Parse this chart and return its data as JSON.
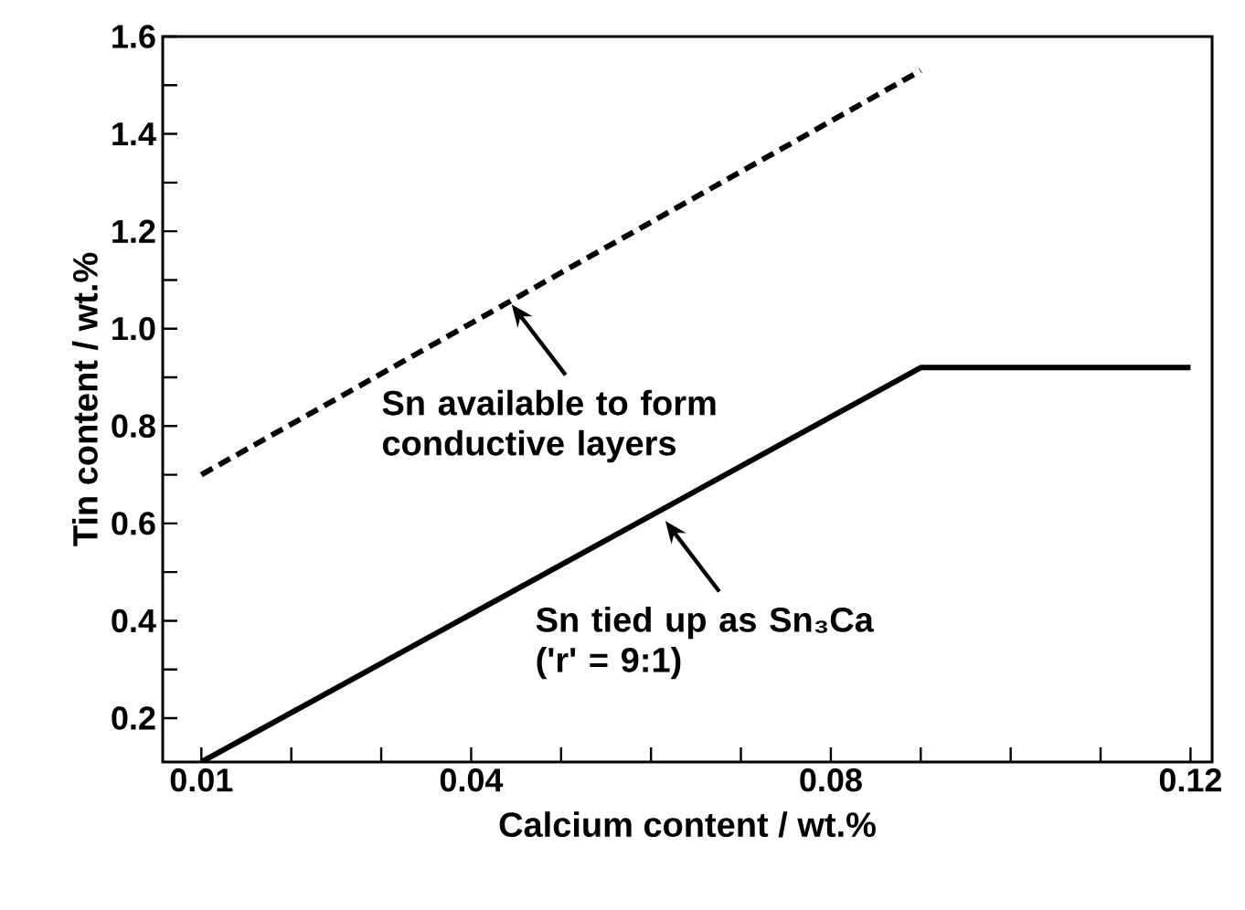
{
  "chart_data": {
    "type": "line",
    "xlabel": "Calcium content / wt.%",
    "ylabel": "Tin content / wt.%",
    "xlim": [
      0.0057,
      0.1224
    ],
    "ylim": [
      0.11,
      1.6
    ],
    "xticks": [
      0.01,
      {
        "value": 0.02,
        "label": null
      },
      {
        "value": 0.03,
        "label": null
      },
      0.04,
      {
        "value": 0.05,
        "label": null
      },
      {
        "value": 0.06,
        "label": null
      },
      {
        "value": 0.07,
        "label": null
      },
      0.08,
      {
        "value": 0.09,
        "label": null
      },
      {
        "value": 0.1,
        "label": null
      },
      {
        "value": 0.11,
        "label": null
      },
      0.12
    ],
    "yticks": [
      0.2,
      {
        "value": 0.3,
        "label": null
      },
      0.4,
      {
        "value": 0.5,
        "label": null
      },
      0.6,
      {
        "value": 0.7,
        "label": null
      },
      0.8,
      {
        "value": 0.9,
        "label": null
      },
      {
        "value": 1.0,
        "label": "1.0"
      },
      {
        "value": 1.1,
        "label": null
      },
      1.2,
      {
        "value": 1.3,
        "label": null
      },
      1.4,
      {
        "value": 1.5,
        "label": null
      },
      1.6
    ],
    "marker": "none",
    "series": [
      {
        "color": "#000000",
        "line_style": "solid",
        "x": [
          0.01,
          0.09,
          0.12
        ],
        "values": [
          0.11,
          0.92,
          0.92
        ]
      },
      {
        "color": "#000000",
        "line_style": "dashed",
        "x": [
          0.01,
          0.09
        ],
        "values": [
          0.7,
          1.53
        ]
      }
    ],
    "annotations": [
      {
        "text": "Sn available to form conductive layers",
        "x": 0.0445,
        "y": 1.05
      },
      {
        "text": "Sn tied up as Sn₃Ca ('r' = 9:1)",
        "x": 0.0616,
        "y": 0.605
      }
    ]
  }
}
